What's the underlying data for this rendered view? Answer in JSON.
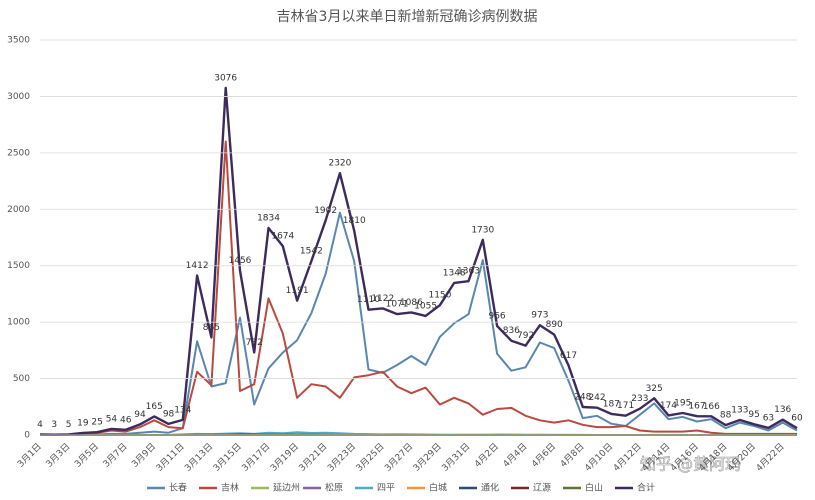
{
  "chart_data": {
    "type": "line",
    "title": "吉林省3月以来单日新增新冠确诊病例数据",
    "categories": [
      "3月1日",
      null,
      "3月3日",
      null,
      "3月5日",
      null,
      "3月7日",
      null,
      "3月9日",
      null,
      "3月11日",
      null,
      "3月13日",
      null,
      "3月15日",
      null,
      "3月17日",
      null,
      "3月19日",
      null,
      "3月21日",
      null,
      "3月23日",
      null,
      "3月25日",
      null,
      "3月27日",
      null,
      "3月29日",
      null,
      "3月31日",
      null,
      "4月2日",
      null,
      "4月4日",
      null,
      "4月6日",
      null,
      "4月8日",
      null,
      "4月10日",
      null,
      "4月12日",
      null,
      "4月14日",
      null,
      "4月16日",
      null,
      "4月18日",
      null,
      "4月20日",
      null,
      "4月22日",
      null
    ],
    "ylim": [
      0,
      3500
    ],
    "yticks": [
      0,
      500,
      1000,
      1500,
      2000,
      2500,
      3000,
      3500
    ],
    "grid": true,
    "legend": "bottom",
    "watermark": "知乎 @黄阿玛",
    "series": [
      {
        "name": "长春",
        "color": "#5b86b0",
        "values": [
          0,
          0,
          0,
          2,
          5,
          10,
          10,
          20,
          30,
          20,
          60,
          830,
          430,
          460,
          1040,
          270,
          590,
          730,
          840,
          1080,
          1430,
          1970,
          1540,
          580,
          550,
          620,
          700,
          620,
          870,
          990,
          1070,
          1550,
          720,
          570,
          600,
          820,
          770,
          480,
          150,
          170,
          100,
          80,
          180,
          280,
          140,
          160,
          120,
          140,
          60,
          110,
          80,
          40,
          110,
          40
        ]
      },
      {
        "name": "吉林",
        "color": "#b84a40",
        "values": [
          4,
          3,
          5,
          15,
          20,
          40,
          30,
          70,
          130,
          70,
          60,
          560,
          440,
          2600,
          390,
          450,
          1210,
          900,
          330,
          450,
          430,
          330,
          510,
          530,
          560,
          430,
          370,
          420,
          270,
          330,
          280,
          180,
          230,
          240,
          170,
          130,
          110,
          130,
          90,
          70,
          70,
          80,
          40,
          30,
          30,
          30,
          40,
          20,
          10,
          10,
          10,
          10,
          10,
          10
        ]
      },
      {
        "name": "延边州",
        "color": "#9bbb59",
        "values": [
          0,
          0,
          0,
          0,
          0,
          0,
          0,
          0,
          0,
          0,
          1,
          2,
          1,
          3,
          2,
          2,
          3,
          2,
          1,
          1,
          2,
          1,
          2,
          1,
          1,
          1,
          2,
          1,
          1,
          0,
          1,
          0,
          1,
          0,
          0,
          1,
          0,
          0,
          1,
          0,
          0,
          0,
          0,
          1,
          0,
          0,
          0,
          0,
          0,
          0,
          0,
          0,
          0,
          0
        ]
      },
      {
        "name": "松原",
        "color": "#8064a2",
        "values": [
          0,
          0,
          0,
          0,
          0,
          0,
          0,
          0,
          0,
          0,
          2,
          3,
          4,
          5,
          6,
          8,
          5,
          4,
          3,
          2,
          1,
          1,
          1,
          0,
          0,
          0,
          0,
          0,
          0,
          0,
          0,
          0,
          0,
          0,
          0,
          0,
          0,
          0,
          0,
          0,
          0,
          0,
          0,
          0,
          0,
          0,
          0,
          0,
          0,
          0,
          0,
          0,
          0,
          0
        ]
      },
      {
        "name": "四平",
        "color": "#4bacc6",
        "values": [
          0,
          0,
          0,
          0,
          0,
          0,
          0,
          0,
          0,
          0,
          5,
          10,
          8,
          12,
          15,
          10,
          20,
          15,
          25,
          18,
          20,
          15,
          10,
          8,
          5,
          6,
          5,
          4,
          3,
          3,
          2,
          3,
          2,
          2,
          1,
          1,
          1,
          1,
          0,
          0,
          0,
          0,
          0,
          0,
          0,
          0,
          0,
          0,
          0,
          0,
          0,
          0,
          0,
          0
        ]
      },
      {
        "name": "白城",
        "color": "#f79646",
        "values": [
          0,
          0,
          0,
          0,
          0,
          0,
          0,
          0,
          0,
          0,
          0,
          0,
          0,
          0,
          0,
          0,
          0,
          0,
          0,
          0,
          0,
          0,
          0,
          0,
          0,
          0,
          0,
          0,
          0,
          0,
          2,
          3,
          5,
          4,
          3,
          2,
          1,
          1,
          0,
          0,
          0,
          0,
          0,
          0,
          0,
          0,
          0,
          0,
          0,
          0,
          0,
          0,
          0,
          0
        ]
      },
      {
        "name": "通化",
        "color": "#2c4d75",
        "values": [
          0,
          0,
          0,
          0,
          0,
          0,
          0,
          0,
          0,
          0,
          0,
          1,
          2,
          3,
          5,
          4,
          3,
          2,
          3,
          2,
          1,
          0,
          0,
          0,
          0,
          0,
          0,
          0,
          0,
          0,
          0,
          0,
          0,
          0,
          0,
          0,
          0,
          0,
          0,
          0,
          0,
          0,
          0,
          0,
          0,
          0,
          0,
          0,
          0,
          0,
          0,
          0,
          0,
          0
        ]
      },
      {
        "name": "辽源",
        "color": "#772c2a",
        "values": [
          0,
          0,
          0,
          0,
          0,
          0,
          0,
          0,
          0,
          0,
          0,
          0,
          0,
          0,
          0,
          0,
          0,
          0,
          0,
          0,
          0,
          0,
          0,
          0,
          0,
          0,
          0,
          0,
          0,
          0,
          0,
          0,
          0,
          0,
          0,
          0,
          0,
          0,
          0,
          0,
          0,
          0,
          0,
          0,
          0,
          0,
          0,
          0,
          0,
          0,
          0,
          0,
          0,
          0
        ]
      },
      {
        "name": "白山",
        "color": "#5f7530",
        "values": [
          0,
          0,
          0,
          0,
          0,
          0,
          0,
          0,
          0,
          0,
          0,
          0,
          0,
          0,
          0,
          0,
          0,
          0,
          0,
          0,
          0,
          0,
          0,
          0,
          0,
          0,
          0,
          0,
          0,
          0,
          0,
          0,
          0,
          0,
          0,
          0,
          0,
          0,
          0,
          0,
          0,
          0,
          0,
          0,
          0,
          0,
          0,
          0,
          0,
          0,
          0,
          0,
          0,
          0
        ]
      },
      {
        "name": "合计",
        "color": "#3d2b5e",
        "data_labels": true,
        "values": [
          4,
          3,
          5,
          19,
          25,
          54,
          46,
          94,
          165,
          98,
          134,
          1412,
          865,
          3076,
          1456,
          732,
          1834,
          1674,
          1191,
          1542,
          1902,
          2320,
          1810,
          1110,
          1122,
          1071,
          1086,
          1055,
          1150,
          1348,
          1363,
          1730,
          966,
          836,
          792,
          973,
          890,
          617,
          248,
          242,
          187,
          171,
          233,
          325,
          174,
          195,
          167,
          166,
          88,
          133,
          95,
          63,
          136,
          60
        ]
      }
    ]
  }
}
